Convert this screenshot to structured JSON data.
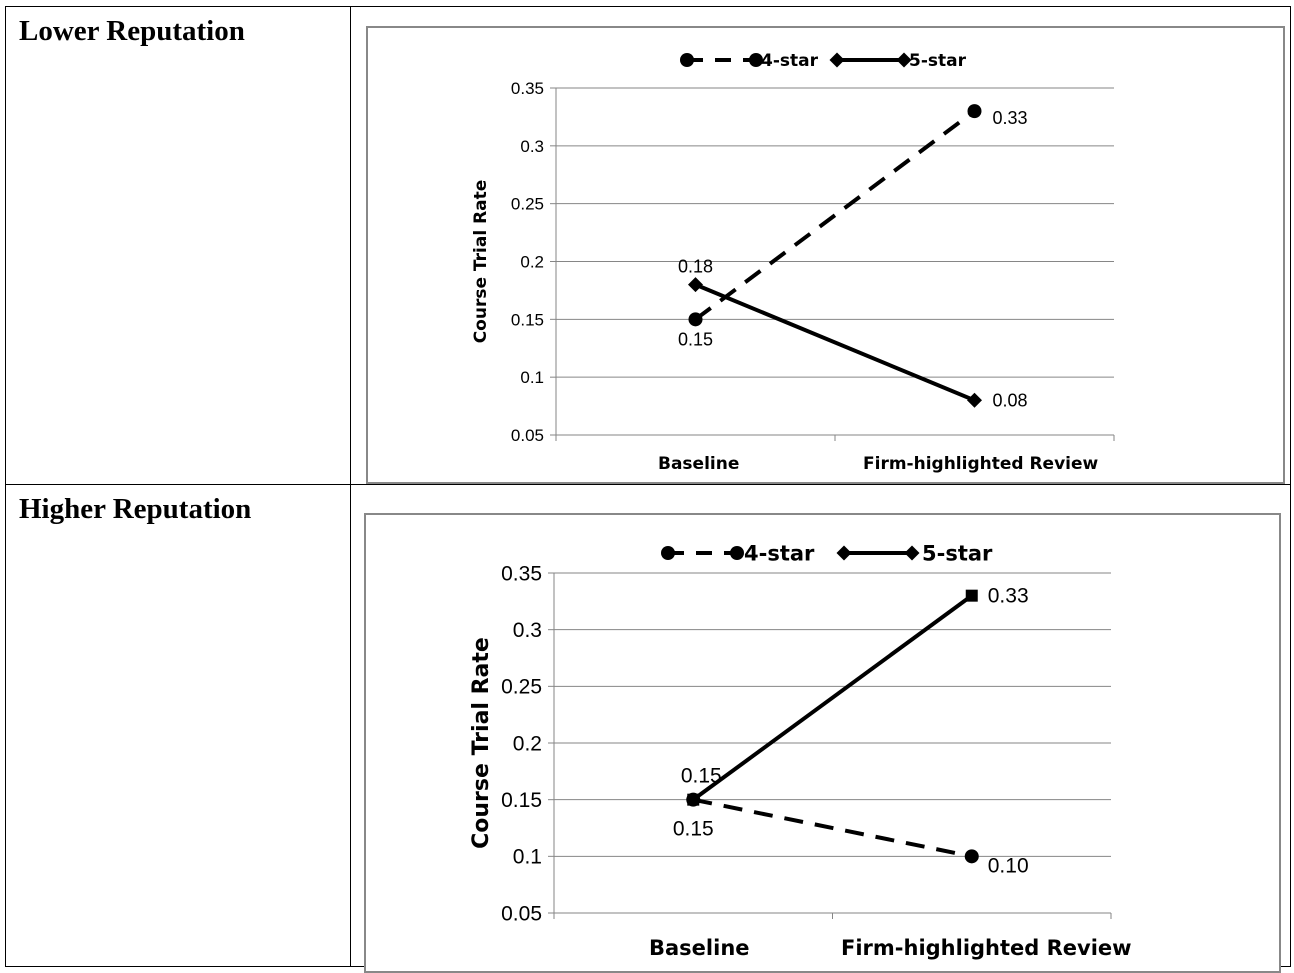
{
  "rows": [
    {
      "label": "Lower Reputation"
    },
    {
      "label": "Higher Reputation"
    }
  ],
  "chart_data": [
    {
      "type": "line",
      "ylabel": "Course Trial Rate",
      "categories": [
        "Baseline",
        "Firm-highlighted Review"
      ],
      "ylim": [
        0.05,
        0.35
      ],
      "yticks": [
        "0.05",
        "0.1",
        "0.15",
        "0.2",
        "0.25",
        "0.3",
        "0.35"
      ],
      "grid": true,
      "legend_position": "top",
      "series": [
        {
          "name": "4-star",
          "values": [
            0.15,
            0.33
          ],
          "labels": [
            "0.15",
            "0.33"
          ],
          "style": "dashed",
          "marker": "circle",
          "color": "#000000"
        },
        {
          "name": "5-star",
          "values": [
            0.18,
            0.08
          ],
          "labels": [
            "0.18",
            "0.08"
          ],
          "style": "solid",
          "marker": "diamond",
          "color": "#000000"
        }
      ]
    },
    {
      "type": "line",
      "ylabel": "Course Trial Rate",
      "categories": [
        "Baseline",
        "Firm-highlighted Review"
      ],
      "ylim": [
        0.05,
        0.35
      ],
      "yticks": [
        "0.05",
        "0.1",
        "0.15",
        "0.2",
        "0.25",
        "0.3",
        "0.35"
      ],
      "grid": true,
      "legend_position": "top",
      "series": [
        {
          "name": "4-star",
          "values": [
            0.15,
            0.1
          ],
          "labels": [
            "0.15",
            "0.10"
          ],
          "style": "dashed",
          "marker": "circle",
          "color": "#000000"
        },
        {
          "name": "5-star",
          "values": [
            0.15,
            0.33
          ],
          "labels": [
            "0.15",
            "0.33"
          ],
          "style": "solid",
          "marker": "square",
          "color": "#000000"
        }
      ]
    }
  ]
}
